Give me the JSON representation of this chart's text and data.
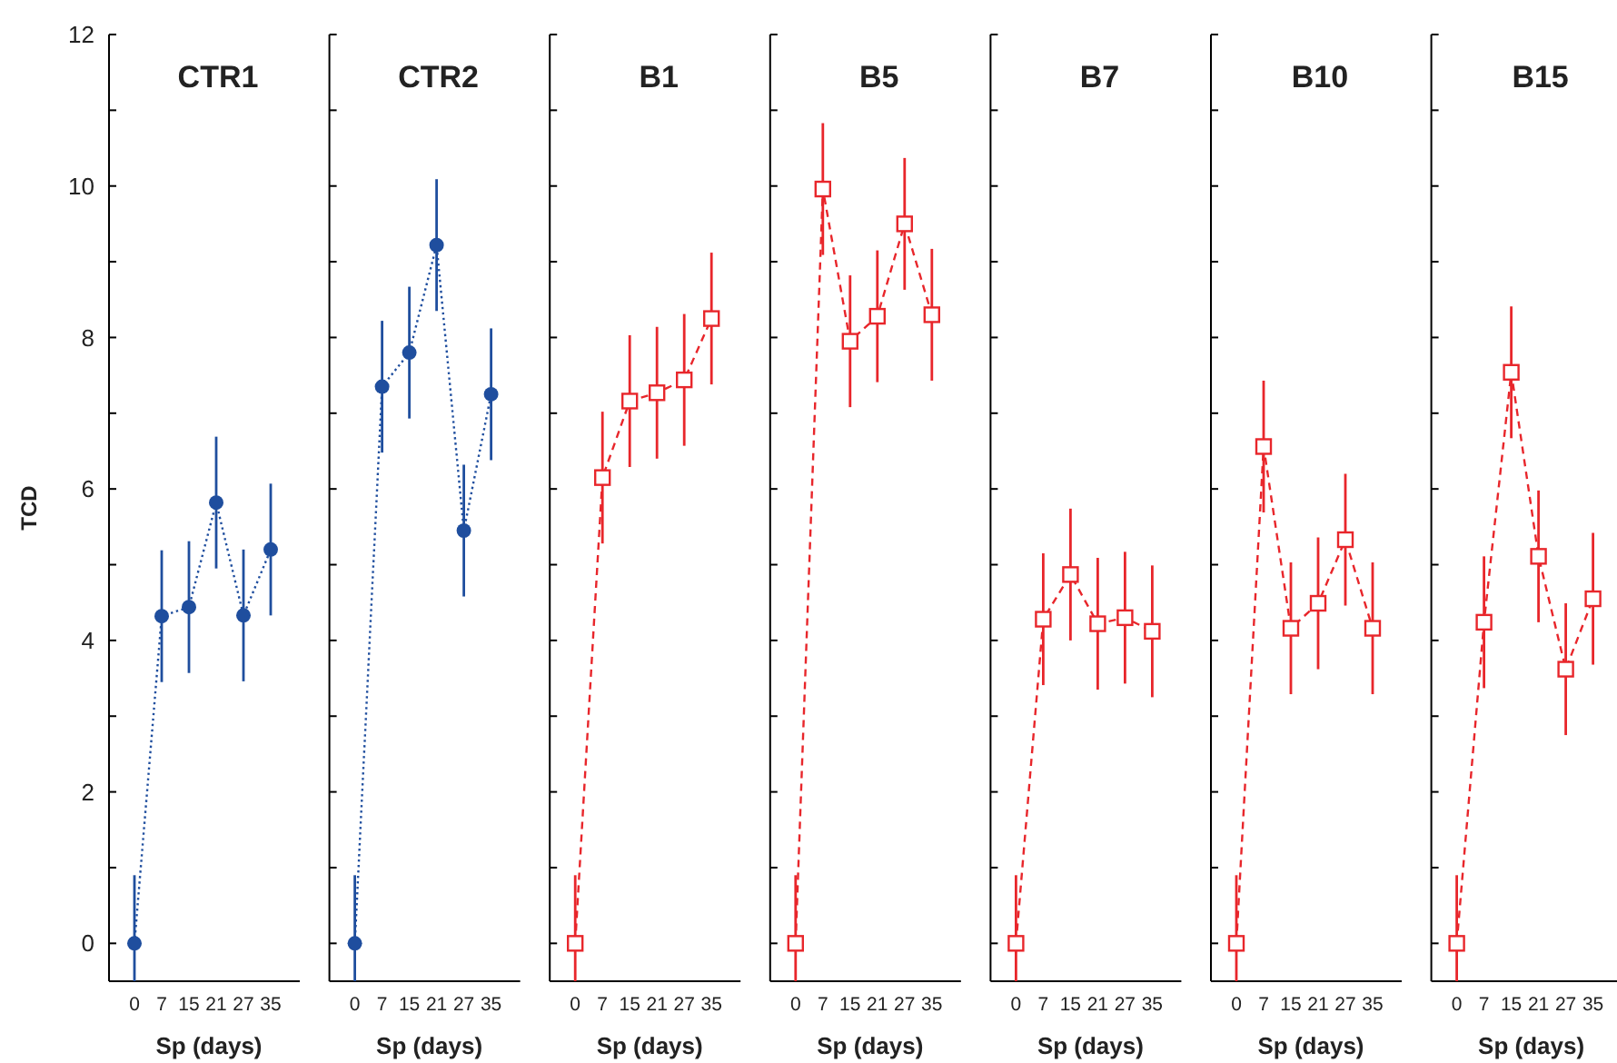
{
  "chart_data": [
    {
      "type": "line",
      "title": "CTR1",
      "xlabel": "Sp (days)",
      "ylabel": "TCD",
      "categories": [
        "0",
        "7",
        "15",
        "21",
        "27",
        "35"
      ],
      "marker": "circle",
      "line_style": "dotted",
      "ylim": [
        -0.5,
        12
      ],
      "yticks": [
        0,
        {
          "value": 1,
          "label": null
        },
        2,
        {
          "value": 3,
          "label": null
        },
        4,
        {
          "value": 5,
          "label": null
        },
        6,
        {
          "value": 7,
          "label": null
        },
        8,
        {
          "value": 9,
          "label": null
        },
        10,
        {
          "value": 11,
          "label": null
        },
        12
      ],
      "series": [
        {
          "color": "#1f4e9e",
          "values": [
            0,
            4.32,
            4.44,
            5.82,
            4.33,
            5.2
          ],
          "errors": [
            [
              -0.5,
              0.9
            ],
            0.87,
            0.87,
            0.87,
            0.87,
            0.87
          ]
        }
      ]
    },
    {
      "type": "line",
      "title": "CTR2",
      "xlabel": "Sp (days)",
      "categories": [
        "0",
        "7",
        "15",
        "21",
        "27",
        "35"
      ],
      "marker": "circle",
      "line_style": "dotted",
      "tick_labels": "x",
      "ylim": [
        -0.5,
        12
      ],
      "yticks": [
        0,
        {
          "value": 1,
          "label": null
        },
        2,
        {
          "value": 3,
          "label": null
        },
        4,
        {
          "value": 5,
          "label": null
        },
        6,
        {
          "value": 7,
          "label": null
        },
        8,
        {
          "value": 9,
          "label": null
        },
        10,
        {
          "value": 11,
          "label": null
        },
        12
      ],
      "series": [
        {
          "color": "#1f4e9e",
          "values": [
            0,
            7.35,
            7.8,
            9.22,
            5.45,
            7.25
          ],
          "errors": [
            [
              -0.5,
              0.9
            ],
            0.87,
            0.87,
            0.87,
            0.87,
            0.87
          ]
        }
      ]
    },
    {
      "type": "line",
      "title": "B1",
      "xlabel": "Sp (days)",
      "categories": [
        "0",
        "7",
        "15",
        "21",
        "27",
        "35"
      ],
      "marker": "square",
      "line_style": "dashed",
      "tick_labels": "x",
      "ylim": [
        -0.5,
        12
      ],
      "yticks": [
        0,
        {
          "value": 1,
          "label": null
        },
        2,
        {
          "value": 3,
          "label": null
        },
        4,
        {
          "value": 5,
          "label": null
        },
        6,
        {
          "value": 7,
          "label": null
        },
        8,
        {
          "value": 9,
          "label": null
        },
        10,
        {
          "value": 11,
          "label": null
        },
        12
      ],
      "series": [
        {
          "color": "#e8262b",
          "values": [
            0,
            6.15,
            7.16,
            7.27,
            7.44,
            8.25
          ],
          "errors": [
            [
              -0.5,
              0.9
            ],
            0.87,
            0.87,
            0.87,
            0.87,
            0.87
          ]
        }
      ]
    },
    {
      "type": "line",
      "title": "B5",
      "xlabel": "Sp (days)",
      "categories": [
        "0",
        "7",
        "15",
        "21",
        "27",
        "35"
      ],
      "marker": "square",
      "line_style": "dashed",
      "tick_labels": "x",
      "ylim": [
        -0.5,
        12
      ],
      "yticks": [
        0,
        {
          "value": 1,
          "label": null
        },
        2,
        {
          "value": 3,
          "label": null
        },
        4,
        {
          "value": 5,
          "label": null
        },
        6,
        {
          "value": 7,
          "label": null
        },
        8,
        {
          "value": 9,
          "label": null
        },
        10,
        {
          "value": 11,
          "label": null
        },
        12
      ],
      "series": [
        {
          "color": "#e8262b",
          "values": [
            0,
            9.96,
            7.95,
            8.28,
            9.5,
            8.3
          ],
          "errors": [
            [
              -0.5,
              0.9
            ],
            0.87,
            0.87,
            0.87,
            0.87,
            0.87
          ]
        }
      ]
    },
    {
      "type": "line",
      "title": "B7",
      "xlabel": "Sp (days)",
      "categories": [
        "0",
        "7",
        "15",
        "21",
        "27",
        "35"
      ],
      "marker": "square",
      "line_style": "dashed",
      "tick_labels": "x",
      "ylim": [
        -0.5,
        12
      ],
      "yticks": [
        0,
        {
          "value": 1,
          "label": null
        },
        2,
        {
          "value": 3,
          "label": null
        },
        4,
        {
          "value": 5,
          "label": null
        },
        6,
        {
          "value": 7,
          "label": null
        },
        8,
        {
          "value": 9,
          "label": null
        },
        10,
        {
          "value": 11,
          "label": null
        },
        12
      ],
      "series": [
        {
          "color": "#e8262b",
          "values": [
            0,
            4.28,
            4.87,
            4.22,
            4.3,
            4.12
          ],
          "errors": [
            [
              -0.5,
              0.9
            ],
            0.87,
            0.87,
            0.87,
            0.87,
            0.87
          ]
        }
      ]
    },
    {
      "type": "line",
      "title": "B10",
      "xlabel": "Sp (days)",
      "categories": [
        "0",
        "7",
        "15",
        "21",
        "27",
        "35"
      ],
      "marker": "square",
      "line_style": "dashed",
      "tick_labels": "x",
      "ylim": [
        -0.5,
        12
      ],
      "yticks": [
        0,
        {
          "value": 1,
          "label": null
        },
        2,
        {
          "value": 3,
          "label": null
        },
        4,
        {
          "value": 5,
          "label": null
        },
        6,
        {
          "value": 7,
          "label": null
        },
        8,
        {
          "value": 9,
          "label": null
        },
        10,
        {
          "value": 11,
          "label": null
        },
        12
      ],
      "series": [
        {
          "color": "#e8262b",
          "values": [
            0,
            6.56,
            4.16,
            4.49,
            5.33,
            4.16
          ],
          "errors": [
            [
              -0.5,
              0.9
            ],
            0.87,
            0.87,
            0.87,
            0.87,
            0.87
          ]
        }
      ]
    },
    {
      "type": "line",
      "title": "B15",
      "xlabel": "Sp (days)",
      "categories": [
        "0",
        "7",
        "15",
        "21",
        "27",
        "35"
      ],
      "marker": "square",
      "line_style": "dashed",
      "tick_labels": "x",
      "ylim": [
        -0.5,
        12
      ],
      "yticks": [
        0,
        {
          "value": 1,
          "label": null
        },
        2,
        {
          "value": 3,
          "label": null
        },
        4,
        {
          "value": 5,
          "label": null
        },
        6,
        {
          "value": 7,
          "label": null
        },
        8,
        {
          "value": 9,
          "label": null
        },
        10,
        {
          "value": 11,
          "label": null
        },
        12
      ],
      "series": [
        {
          "color": "#e8262b",
          "values": [
            0,
            4.24,
            7.54,
            5.11,
            3.62,
            4.55
          ],
          "errors": [
            [
              -0.5,
              0.9
            ],
            0.87,
            0.87,
            0.87,
            0.87,
            0.87
          ]
        }
      ]
    }
  ]
}
